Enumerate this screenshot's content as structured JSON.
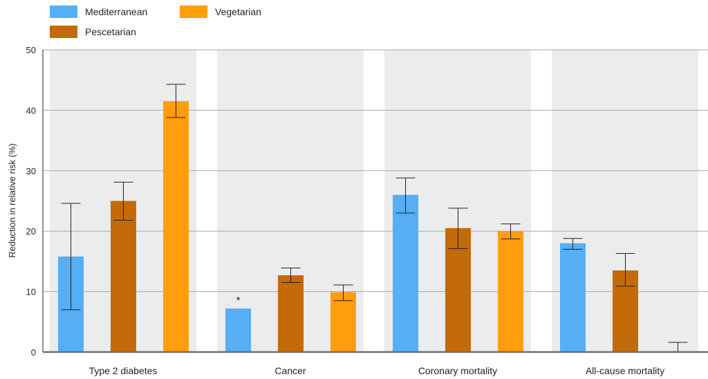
{
  "chart_data": {
    "type": "bar",
    "title": "",
    "xlabel": "",
    "ylabel": "Reduction in relative risk (%)",
    "ylim": [
      0,
      50
    ],
    "yticks": [
      0,
      10,
      20,
      30,
      40,
      50
    ],
    "grid": true,
    "legend_position": "top-left",
    "categories": [
      "Type 2 diabetes",
      "Cancer",
      "Coronary mortality",
      "All-cause mortality"
    ],
    "series": [
      {
        "name": "Mediterranean",
        "color": "#56aef4",
        "values": [
          15.8,
          7.2,
          26,
          18
        ],
        "err_low": [
          7,
          null,
          23,
          17
        ],
        "err_high": [
          24.6,
          null,
          28.8,
          18.8
        ],
        "annotations": [
          null,
          "*",
          null,
          null
        ]
      },
      {
        "name": "Pescetarian",
        "color": "#c46a08",
        "values": [
          25,
          12.7,
          20.5,
          13.5
        ],
        "err_low": [
          21.8,
          11.5,
          17.1,
          10.9
        ],
        "err_high": [
          28.1,
          13.9,
          23.8,
          16.3
        ],
        "annotations": [
          null,
          null,
          null,
          null
        ]
      },
      {
        "name": "Vegetarian",
        "color": "#ff9d0c",
        "values": [
          41.5,
          9.9,
          20,
          0
        ],
        "err_low": [
          38.8,
          8.5,
          18.7,
          0
        ],
        "err_high": [
          44.3,
          11.1,
          21.2,
          1.6
        ],
        "annotations": [
          null,
          null,
          null,
          null
        ]
      }
    ]
  }
}
